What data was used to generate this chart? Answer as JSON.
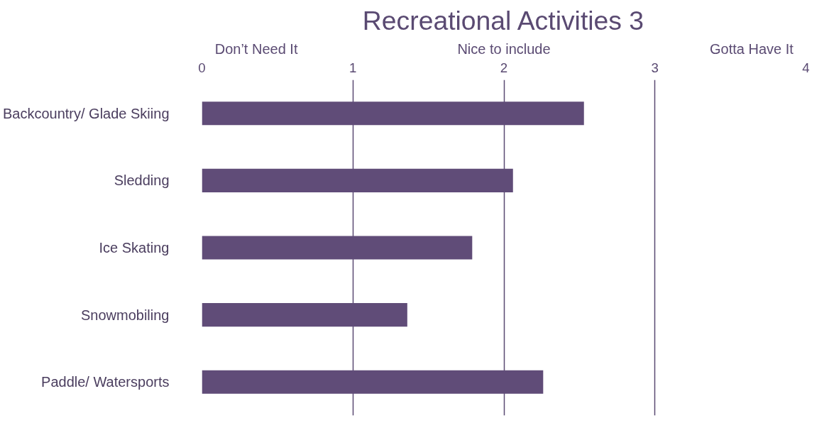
{
  "chart_data": {
    "type": "bar",
    "orientation": "horizontal",
    "title": "Recreational Activities 3",
    "categories": [
      "Backcountry/ Glade Skiing",
      "Sledding",
      "Ice Skating",
      "Snowmobiling",
      "Paddle/ Watersports"
    ],
    "values": [
      2.53,
      2.06,
      1.79,
      1.36,
      2.26
    ],
    "color": "#604c78",
    "xlim": [
      0,
      4
    ],
    "xticks": [
      0,
      1,
      2,
      3,
      4
    ],
    "grid": "x",
    "annotations": [
      "Don’t Need It",
      "Nice to include",
      "Gotta Have It"
    ]
  }
}
